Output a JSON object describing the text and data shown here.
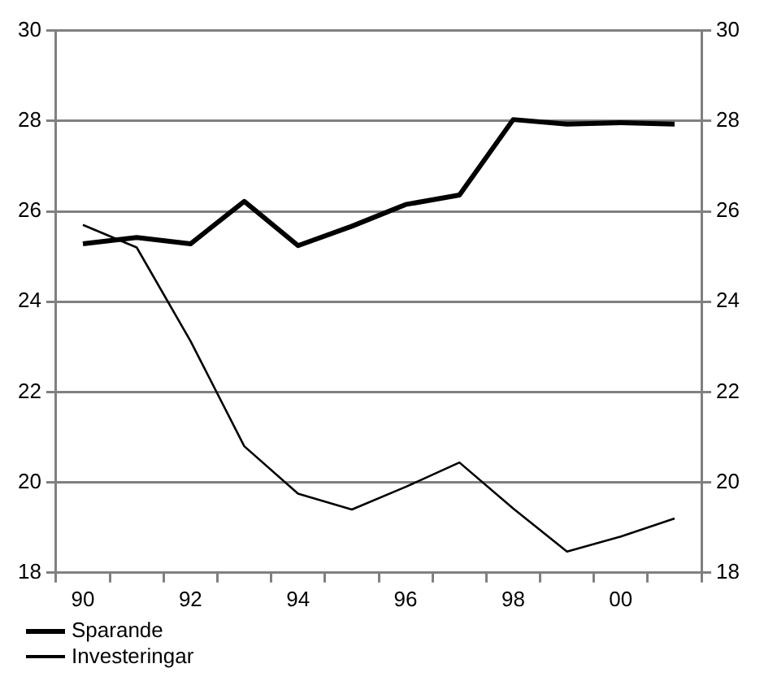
{
  "chart_data": {
    "type": "line",
    "categories": [
      "90",
      null,
      "92",
      null,
      "94",
      null,
      "96",
      null,
      "98",
      null,
      "00",
      null
    ],
    "series": [
      {
        "name": "Sparande",
        "color": "#000000",
        "values": [
          25.28,
          25.42,
          25.28,
          26.22,
          25.24,
          25.67,
          26.15,
          26.36,
          28.03,
          27.93,
          27.96,
          27.93
        ]
      },
      {
        "name": "Investeringar",
        "color": "#000000",
        "values": [
          25.7,
          25.2,
          23.13,
          20.8,
          19.75,
          19.4,
          19.9,
          20.44,
          19.42,
          18.47,
          18.8,
          19.2
        ]
      }
    ],
    "ylim": [
      18,
      30
    ],
    "yticks": [
      18,
      20,
      22,
      24,
      26,
      28,
      30
    ],
    "y2lim": [
      18,
      30
    ],
    "y2ticks": [
      18,
      20,
      22,
      24,
      26,
      28,
      30
    ],
    "grid": "y",
    "legend": "bottom left",
    "marker": "none",
    "line_style": "solid"
  }
}
